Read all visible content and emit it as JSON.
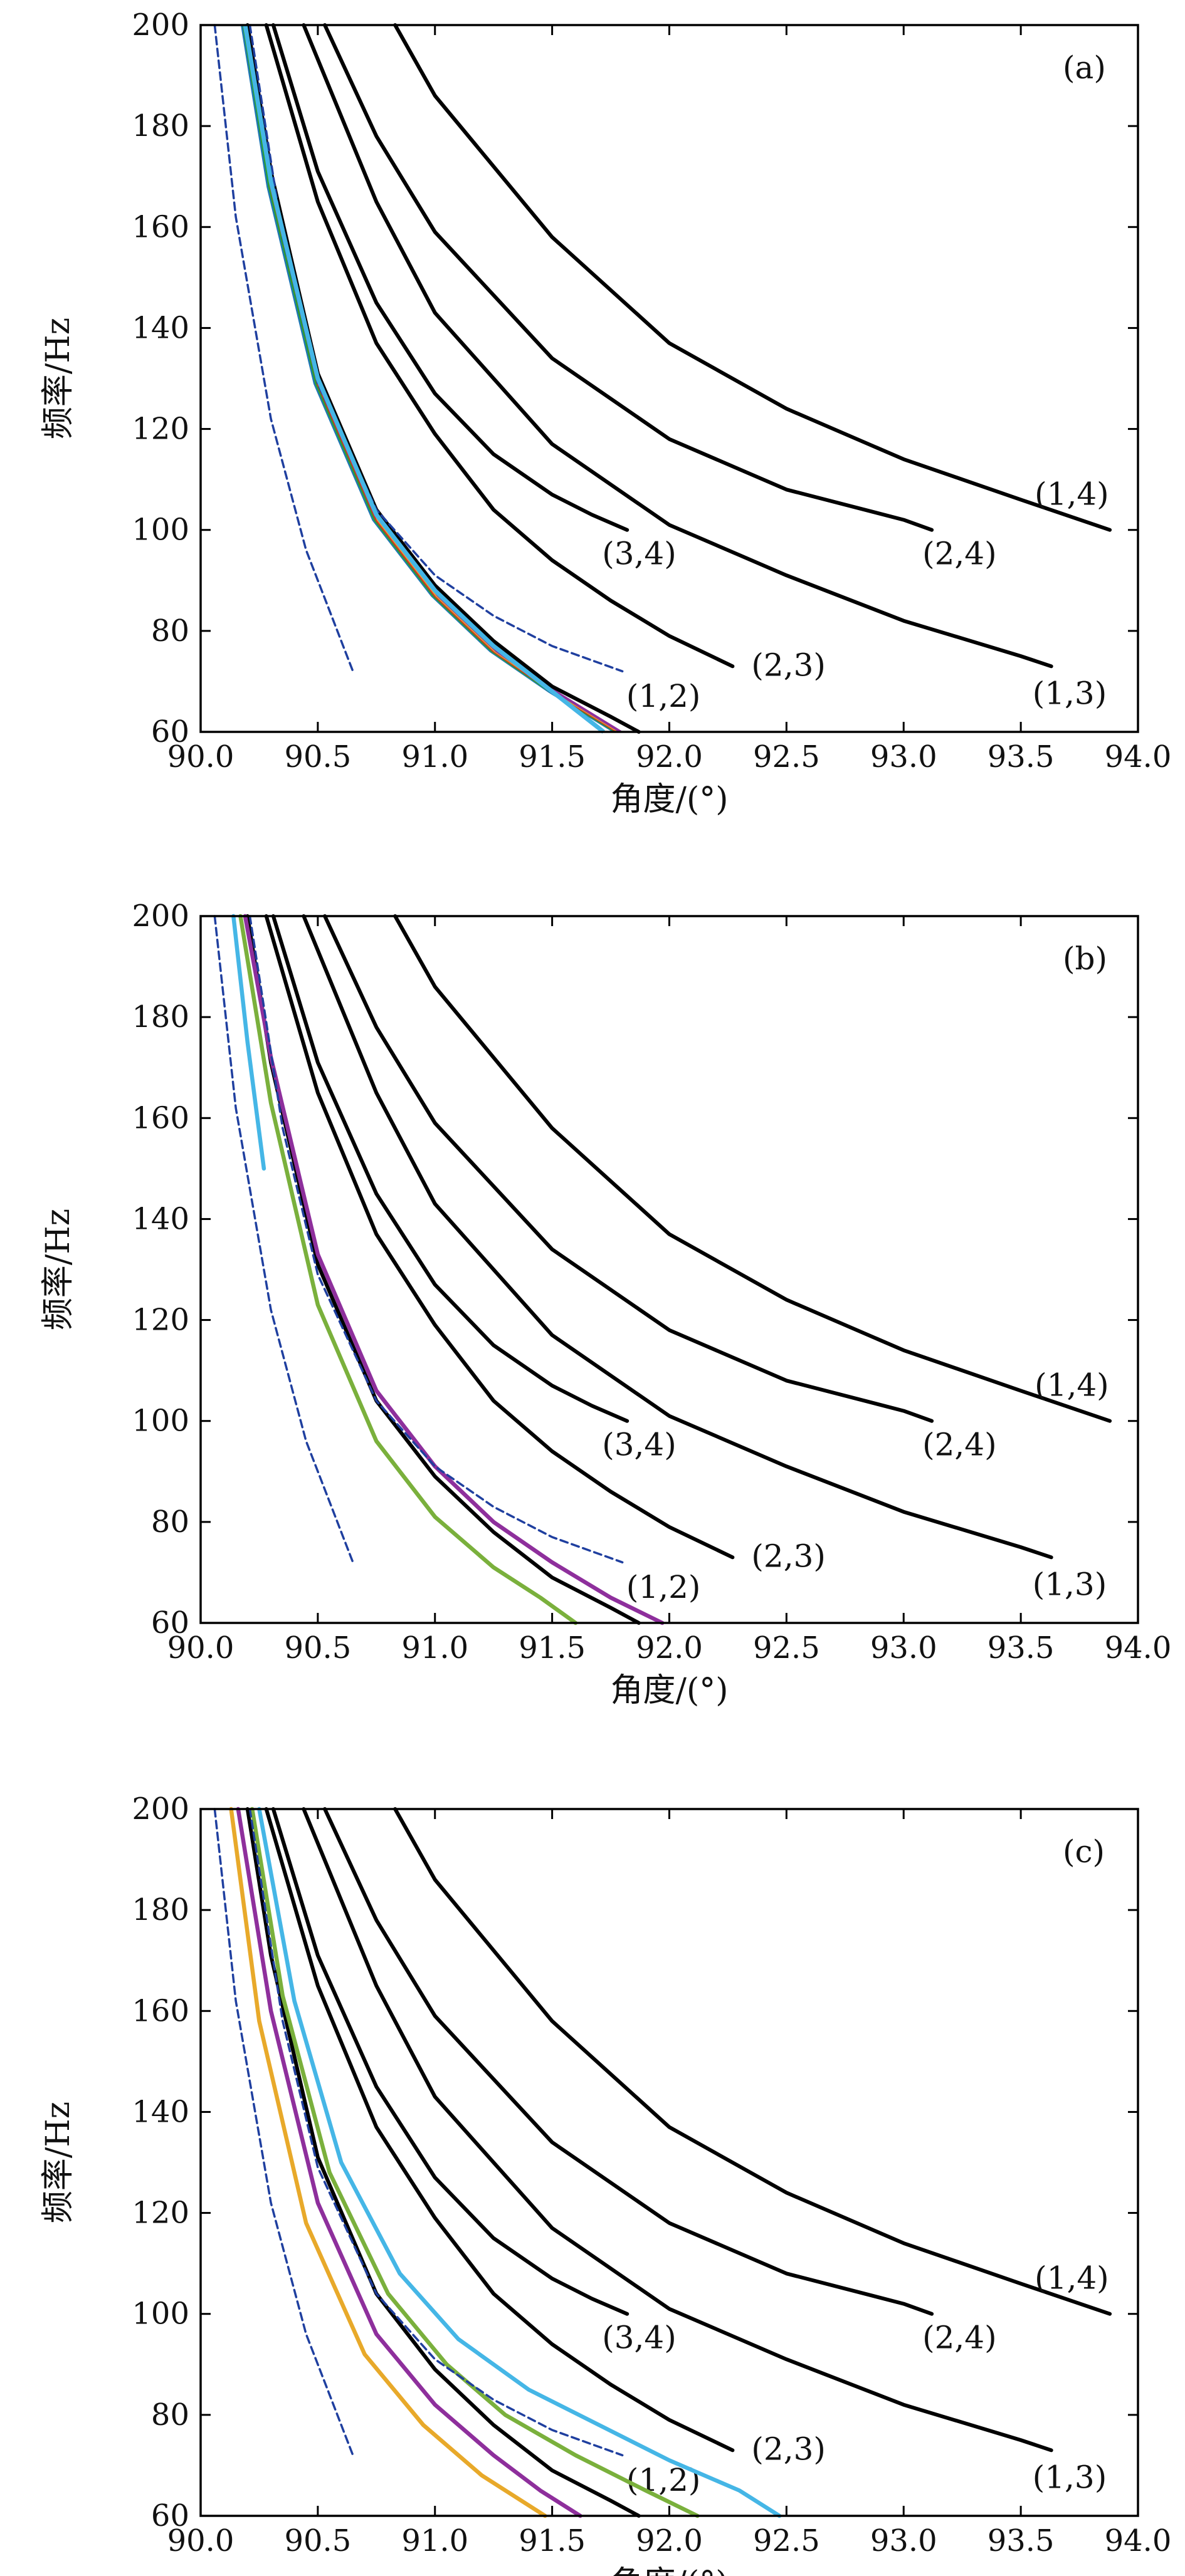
{
  "chart_data": [
    {
      "type": "line",
      "panel_label": "(a)",
      "xlabel": "角度/(°)",
      "ylabel": "频率/Hz",
      "xlim": [
        90.0,
        94.0
      ],
      "ylim": [
        60,
        200
      ],
      "xticks": [
        "90.0",
        "90.5",
        "91.0",
        "91.5",
        "92.0",
        "92.5",
        "93.0",
        "93.5",
        "94.0"
      ],
      "yticks": [
        "60",
        "80",
        "100",
        "120",
        "140",
        "160",
        "180",
        "200"
      ],
      "grid": false,
      "series": [
        {
          "label": "(1,4)",
          "style": "black-solid",
          "x": [
            90.83,
            91.0,
            91.5,
            92.0,
            92.5,
            93.0,
            93.5,
            93.88
          ],
          "y": [
            200,
            186,
            158,
            137,
            124,
            114,
            106,
            100
          ]
        },
        {
          "label": "(2,4)",
          "style": "black-solid",
          "x": [
            90.53,
            90.75,
            91.0,
            91.5,
            92.0,
            92.5,
            93.0,
            93.12
          ],
          "y": [
            200,
            178,
            159,
            134,
            118,
            108,
            102,
            100
          ]
        },
        {
          "label": "(3,4)",
          "style": "black-solid",
          "x": [
            90.31,
            90.5,
            90.75,
            91.0,
            91.25,
            91.5,
            91.67,
            91.82
          ],
          "y": [
            200,
            171,
            145,
            127,
            115,
            107,
            103,
            100
          ]
        },
        {
          "label": "(1,3)",
          "style": "black-solid",
          "x": [
            90.44,
            90.75,
            91.0,
            91.5,
            92.0,
            92.5,
            93.0,
            93.5,
            93.63
          ],
          "y": [
            200,
            165,
            143,
            117,
            101,
            91,
            82,
            75,
            73
          ]
        },
        {
          "label": "(2,3)",
          "style": "black-solid",
          "x": [
            90.28,
            90.5,
            90.75,
            91.0,
            91.25,
            91.5,
            91.75,
            92.0,
            92.27
          ],
          "y": [
            200,
            165,
            137,
            119,
            104,
            94,
            86,
            79,
            73
          ]
        },
        {
          "label": "(1,2)",
          "style": "black-solid",
          "x": [
            90.2,
            90.3,
            90.5,
            90.75,
            91.0,
            91.25,
            91.5,
            91.75,
            91.87
          ],
          "y": [
            200,
            171,
            131,
            104,
            89,
            78,
            69,
            63,
            60
          ]
        },
        {
          "label": "",
          "style": "color-band",
          "x": [
            90.19,
            90.3,
            90.5,
            90.75,
            91.0,
            91.25,
            91.5,
            91.78
          ],
          "y": [
            200,
            168,
            129,
            102,
            87,
            76,
            68,
            60
          ]
        },
        {
          "label": "",
          "style": "blue-dashed",
          "x": [
            90.06,
            90.15,
            90.3,
            90.45,
            90.55,
            90.65
          ],
          "y": [
            200,
            162,
            122,
            96,
            84,
            72
          ]
        },
        {
          "label": "",
          "style": "blue-dashed",
          "x": [
            90.21,
            90.35,
            90.5,
            90.75,
            91.0,
            91.25,
            91.5,
            91.8
          ],
          "y": [
            200,
            158,
            129,
            104,
            91,
            83,
            77,
            72
          ]
        }
      ]
    },
    {
      "type": "line",
      "panel_label": "(b)",
      "xlabel": "角度/(°)",
      "ylabel": "频率/Hz",
      "xlim": [
        90.0,
        94.0
      ],
      "ylim": [
        60,
        200
      ],
      "xticks": [
        "90.0",
        "90.5",
        "91.0",
        "91.5",
        "92.0",
        "92.5",
        "93.0",
        "93.5",
        "94.0"
      ],
      "yticks": [
        "60",
        "80",
        "100",
        "120",
        "140",
        "160",
        "180",
        "200"
      ],
      "grid": false,
      "series": [
        {
          "label": "(1,4)",
          "style": "black-solid",
          "x": [
            90.83,
            91.0,
            91.5,
            92.0,
            92.5,
            93.0,
            93.5,
            93.88
          ],
          "y": [
            200,
            186,
            158,
            137,
            124,
            114,
            106,
            100
          ]
        },
        {
          "label": "(2,4)",
          "style": "black-solid",
          "x": [
            90.53,
            90.75,
            91.0,
            91.5,
            92.0,
            92.5,
            93.0,
            93.12
          ],
          "y": [
            200,
            178,
            159,
            134,
            118,
            108,
            102,
            100
          ]
        },
        {
          "label": "(3,4)",
          "style": "black-solid",
          "x": [
            90.31,
            90.5,
            90.75,
            91.0,
            91.25,
            91.5,
            91.67,
            91.82
          ],
          "y": [
            200,
            171,
            145,
            127,
            115,
            107,
            103,
            100
          ]
        },
        {
          "label": "(1,3)",
          "style": "black-solid",
          "x": [
            90.44,
            90.75,
            91.0,
            91.5,
            92.0,
            92.5,
            93.0,
            93.5,
            93.63
          ],
          "y": [
            200,
            165,
            143,
            117,
            101,
            91,
            82,
            75,
            73
          ]
        },
        {
          "label": "(2,3)",
          "style": "black-solid",
          "x": [
            90.28,
            90.5,
            90.75,
            91.0,
            91.25,
            91.5,
            91.75,
            92.0,
            92.27
          ],
          "y": [
            200,
            165,
            137,
            119,
            104,
            94,
            86,
            79,
            73
          ]
        },
        {
          "label": "(1,2)",
          "style": "black-solid",
          "x": [
            90.2,
            90.3,
            90.5,
            90.75,
            91.0,
            91.25,
            91.5,
            91.75,
            91.87
          ],
          "y": [
            200,
            171,
            131,
            104,
            89,
            78,
            69,
            63,
            60
          ]
        },
        {
          "label": "",
          "style": "purple",
          "x": [
            90.19,
            90.3,
            90.5,
            90.75,
            91.0,
            91.25,
            91.5,
            91.75,
            91.97
          ],
          "y": [
            200,
            172,
            133,
            106,
            91,
            80,
            72,
            65,
            60
          ]
        },
        {
          "label": "",
          "style": "green",
          "x": [
            90.17,
            90.3,
            90.5,
            90.75,
            91.0,
            91.25,
            91.45,
            91.6
          ],
          "y": [
            200,
            163,
            123,
            96,
            81,
            71,
            65,
            60
          ]
        },
        {
          "label": "",
          "style": "cyan",
          "x": [
            90.14,
            90.2,
            90.27
          ],
          "y": [
            200,
            175,
            150
          ]
        },
        {
          "label": "",
          "style": "blue-dashed",
          "x": [
            90.06,
            90.15,
            90.3,
            90.45,
            90.55,
            90.65
          ],
          "y": [
            200,
            162,
            122,
            96,
            84,
            72
          ]
        },
        {
          "label": "",
          "style": "blue-dashed",
          "x": [
            90.21,
            90.35,
            90.5,
            90.75,
            91.0,
            91.25,
            91.5,
            91.8
          ],
          "y": [
            200,
            158,
            129,
            104,
            91,
            83,
            77,
            72
          ]
        }
      ]
    },
    {
      "type": "line",
      "panel_label": "(c)",
      "xlabel": "角度/(°)",
      "ylabel": "频率/Hz",
      "xlim": [
        90.0,
        94.0
      ],
      "ylim": [
        60,
        200
      ],
      "xticks": [
        "90.0",
        "90.5",
        "91.0",
        "91.5",
        "92.0",
        "92.5",
        "93.0",
        "93.5",
        "94.0"
      ],
      "yticks": [
        "60",
        "80",
        "100",
        "120",
        "140",
        "160",
        "180",
        "200"
      ],
      "grid": false,
      "series": [
        {
          "label": "(1,4)",
          "style": "black-solid",
          "x": [
            90.83,
            91.0,
            91.5,
            92.0,
            92.5,
            93.0,
            93.5,
            93.88
          ],
          "y": [
            200,
            186,
            158,
            137,
            124,
            114,
            106,
            100
          ]
        },
        {
          "label": "(2,4)",
          "style": "black-solid",
          "x": [
            90.53,
            90.75,
            91.0,
            91.5,
            92.0,
            92.5,
            93.0,
            93.12
          ],
          "y": [
            200,
            178,
            159,
            134,
            118,
            108,
            102,
            100
          ]
        },
        {
          "label": "(3,4)",
          "style": "black-solid",
          "x": [
            90.31,
            90.5,
            90.75,
            91.0,
            91.25,
            91.5,
            91.67,
            91.82
          ],
          "y": [
            200,
            171,
            145,
            127,
            115,
            107,
            103,
            100
          ]
        },
        {
          "label": "(1,3)",
          "style": "black-solid",
          "x": [
            90.44,
            90.75,
            91.0,
            91.5,
            92.0,
            92.5,
            93.0,
            93.5,
            93.63
          ],
          "y": [
            200,
            165,
            143,
            117,
            101,
            91,
            82,
            75,
            73
          ]
        },
        {
          "label": "(2,3)",
          "style": "black-solid",
          "x": [
            90.28,
            90.5,
            90.75,
            91.0,
            91.25,
            91.5,
            91.75,
            92.0,
            92.27
          ],
          "y": [
            200,
            165,
            137,
            119,
            104,
            94,
            86,
            79,
            73
          ]
        },
        {
          "label": "(1,2)",
          "style": "black-solid",
          "x": [
            90.2,
            90.3,
            90.5,
            90.75,
            91.0,
            91.25,
            91.5,
            91.75,
            91.87
          ],
          "y": [
            200,
            171,
            131,
            104,
            89,
            78,
            69,
            63,
            60
          ]
        },
        {
          "label": "",
          "style": "cyan",
          "x": [
            90.25,
            90.4,
            90.6,
            90.85,
            91.1,
            91.4,
            91.7,
            92.0,
            92.3,
            92.47
          ],
          "y": [
            200,
            162,
            130,
            108,
            95,
            85,
            78,
            71,
            65,
            60
          ]
        },
        {
          "label": "",
          "style": "green",
          "x": [
            90.22,
            90.35,
            90.55,
            90.8,
            91.05,
            91.3,
            91.6,
            91.9,
            92.12
          ],
          "y": [
            200,
            163,
            128,
            104,
            90,
            80,
            72,
            65,
            60
          ]
        },
        {
          "label": "",
          "style": "purple",
          "x": [
            90.16,
            90.3,
            90.5,
            90.75,
            91.0,
            91.25,
            91.45,
            91.62
          ],
          "y": [
            200,
            160,
            122,
            96,
            82,
            72,
            65,
            60
          ]
        },
        {
          "label": "",
          "style": "orange",
          "x": [
            90.13,
            90.25,
            90.45,
            90.7,
            90.95,
            91.2,
            91.47
          ],
          "y": [
            200,
            158,
            118,
            92,
            78,
            68,
            60
          ]
        },
        {
          "label": "",
          "style": "blue-dashed",
          "x": [
            90.06,
            90.15,
            90.3,
            90.45,
            90.55,
            90.65
          ],
          "y": [
            200,
            162,
            122,
            96,
            84,
            72
          ]
        },
        {
          "label": "",
          "style": "blue-dashed",
          "x": [
            90.21,
            90.35,
            90.5,
            90.75,
            91.0,
            91.25,
            91.5,
            91.8
          ],
          "y": [
            200,
            158,
            129,
            104,
            91,
            83,
            77,
            72
          ]
        }
      ]
    }
  ],
  "colors": {
    "black-solid": "#000000",
    "blue-dashed": "#1f3f9f",
    "cyan": "#45b6e6",
    "green": "#7ab03c",
    "purple": "#8e2f9c",
    "orange": "#e8a92a",
    "color-band": "#c4602b"
  }
}
